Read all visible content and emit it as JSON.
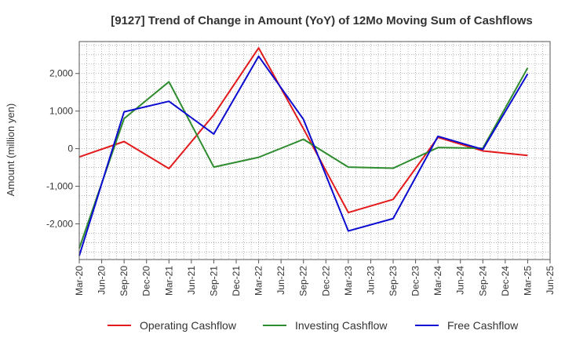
{
  "chart_data": {
    "type": "line",
    "title": "[9127]  Trend of Change in Amount (YoY) of 12Mo Moving Sum of Cashflows",
    "xlabel": "",
    "ylabel": "Amount (million yen)",
    "ylim": [
      -2950,
      2850
    ],
    "yticks": [
      -2000,
      -1000,
      0,
      1000,
      2000
    ],
    "ytick_labels": [
      "-2,000",
      "-1,000",
      "0",
      "1,000",
      "2,000"
    ],
    "x_tick_labels": [
      "Mar-20",
      "Jun-20",
      "Sep-20",
      "Dec-20",
      "Mar-21",
      "Jun-21",
      "Sep-21",
      "Dec-21",
      "Mar-22",
      "Jun-22",
      "Sep-22",
      "Dec-22",
      "Mar-23",
      "Jun-23",
      "Sep-23",
      "Dec-23",
      "Mar-24",
      "Jun-24",
      "Sep-24",
      "Dec-24",
      "Mar-25",
      "Jun-25"
    ],
    "grid": true,
    "legend_position": "bottom",
    "series": [
      {
        "name": "Operating Cashflow",
        "color": "#e31a1c",
        "points": [
          [
            "Mar-20",
            -220
          ],
          [
            "Sep-20",
            190
          ],
          [
            "Mar-21",
            -530
          ],
          [
            "Sep-21",
            900
          ],
          [
            "Mar-22",
            2680
          ],
          [
            "Sep-22",
            530
          ],
          [
            "Mar-23",
            -1700
          ],
          [
            "Sep-23",
            -1350
          ],
          [
            "Mar-24",
            300
          ],
          [
            "Sep-24",
            -60
          ],
          [
            "Mar-25",
            -180
          ]
        ]
      },
      {
        "name": "Investing Cashflow",
        "color": "#2e8b2e",
        "points": [
          [
            "Mar-20",
            -2650
          ],
          [
            "Sep-20",
            800
          ],
          [
            "Mar-21",
            1780
          ],
          [
            "Sep-21",
            -490
          ],
          [
            "Mar-22",
            -230
          ],
          [
            "Sep-22",
            250
          ],
          [
            "Mar-23",
            -490
          ],
          [
            "Sep-23",
            -520
          ],
          [
            "Mar-24",
            30
          ],
          [
            "Sep-24",
            10
          ],
          [
            "Mar-25",
            2150
          ]
        ]
      },
      {
        "name": "Free Cashflow",
        "color": "#0a0ad0",
        "points": [
          [
            "Mar-20",
            -2850
          ],
          [
            "Sep-20",
            980
          ],
          [
            "Mar-21",
            1260
          ],
          [
            "Sep-21",
            390
          ],
          [
            "Mar-22",
            2460
          ],
          [
            "Sep-22",
            780
          ],
          [
            "Mar-23",
            -2190
          ],
          [
            "Sep-23",
            -1860
          ],
          [
            "Mar-24",
            330
          ],
          [
            "Sep-24",
            -20
          ],
          [
            "Mar-25",
            1990
          ]
        ]
      }
    ]
  }
}
